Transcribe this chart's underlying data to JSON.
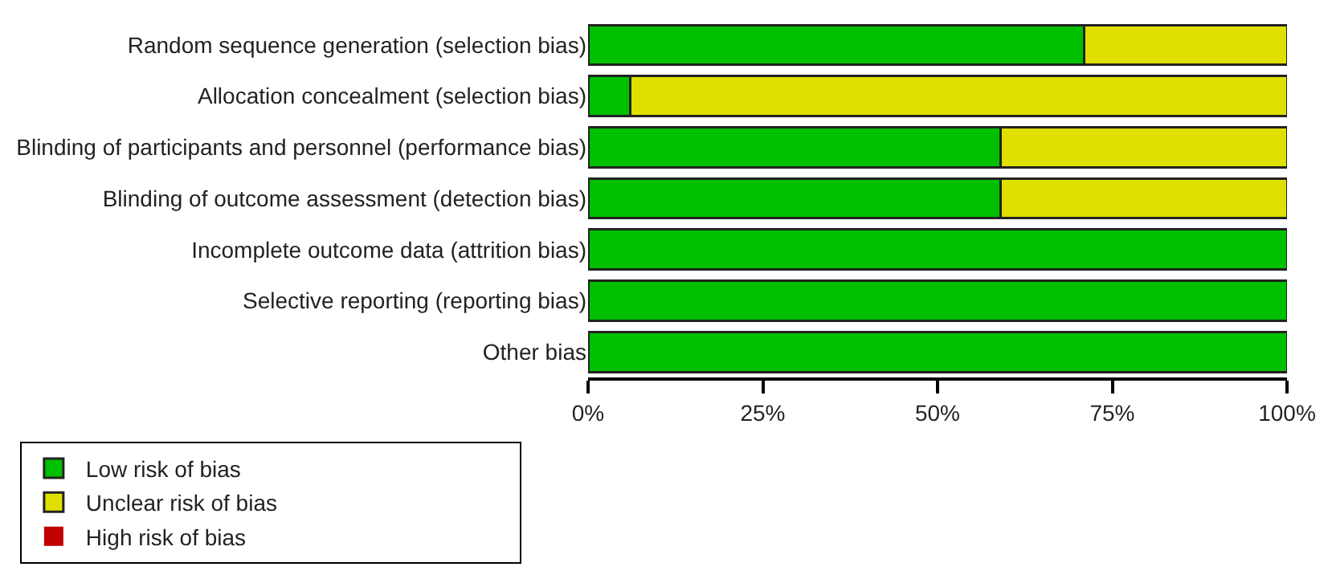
{
  "chart_data": {
    "type": "bar",
    "orientation": "horizontal",
    "stacked": true,
    "categories": [
      "Random sequence generation (selection bias)",
      "Allocation concealment (selection bias)",
      "Blinding of participants and personnel (performance bias)",
      "Blinding of outcome assessment (detection bias)",
      "Incomplete outcome data (attrition bias)",
      "Selective reporting (reporting bias)",
      "Other bias"
    ],
    "series": [
      {
        "name": "Low risk of bias",
        "color": "#00c000",
        "values": [
          71,
          6,
          59,
          59,
          100,
          100,
          100
        ]
      },
      {
        "name": "Unclear risk of bias",
        "color": "#e0e000",
        "values": [
          29,
          94,
          41,
          41,
          0,
          0,
          0
        ]
      },
      {
        "name": "High risk of bias",
        "color": "#c00000",
        "values": [
          0,
          0,
          0,
          0,
          0,
          0,
          0
        ]
      }
    ],
    "xlim": [
      0,
      100
    ],
    "xticks": [
      {
        "value": 0,
        "label": "0%"
      },
      {
        "value": 25,
        "label": "25%"
      },
      {
        "value": 50,
        "label": "50%"
      },
      {
        "value": 75,
        "label": "75%"
      },
      {
        "value": 100,
        "label": "100%"
      }
    ],
    "legend": "bottom"
  }
}
